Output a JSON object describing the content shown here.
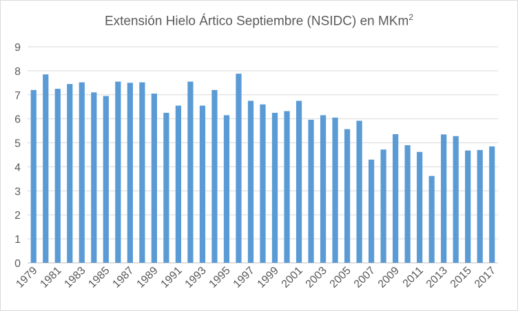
{
  "chart_data": {
    "type": "bar",
    "title": "Extensión Hielo Ártico Septiembre (NSIDC) en MKm",
    "title_superscript": "2",
    "xlabel": "",
    "ylabel": "",
    "ylim": [
      0,
      9
    ],
    "y_ticks": [
      "0",
      "1",
      "2",
      "3",
      "4",
      "5",
      "6",
      "7",
      "8",
      "9"
    ],
    "grid": "horizontal",
    "legend": "none",
    "bar_color": "#5b9bd5",
    "categories": [
      "1979",
      "1980",
      "1981",
      "1982",
      "1983",
      "1984",
      "1985",
      "1986",
      "1987",
      "1988",
      "1989",
      "1990",
      "1991",
      "1992",
      "1993",
      "1994",
      "1995",
      "1996",
      "1997",
      "1998",
      "1999",
      "2000",
      "2001",
      "2002",
      "2003",
      "2004",
      "2005",
      "2006",
      "2007",
      "2008",
      "2009",
      "2010",
      "2011",
      "2012",
      "2013",
      "2014",
      "2015",
      "2016",
      "2017"
    ],
    "x_tick_labels": [
      "1979",
      "1981",
      "1983",
      "1985",
      "1987",
      "1989",
      "1991",
      "1993",
      "1995",
      "1997",
      "1999",
      "2001",
      "2003",
      "2005",
      "2007",
      "2009",
      "2011",
      "2013",
      "2015",
      "2017"
    ],
    "values": [
      7.2,
      7.85,
      7.25,
      7.45,
      7.52,
      7.1,
      6.95,
      7.55,
      7.5,
      7.52,
      7.05,
      6.25,
      6.55,
      7.55,
      6.55,
      7.2,
      6.15,
      7.88,
      6.75,
      6.6,
      6.25,
      6.32,
      6.75,
      5.96,
      6.15,
      6.05,
      5.57,
      5.92,
      4.3,
      4.72,
      5.36,
      4.9,
      4.62,
      3.62,
      5.35,
      5.28,
      4.68,
      4.7,
      4.85
    ]
  }
}
